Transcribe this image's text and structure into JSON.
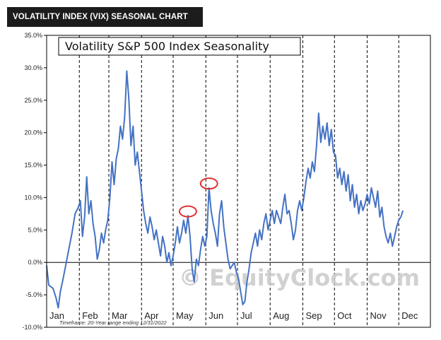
{
  "header": {
    "title": "VOLATILITY INDEX (VIX) SEASONAL CHART"
  },
  "chart_data": {
    "type": "line",
    "title": "Volatility S&P 500 Index Seasonality",
    "xlabel": "",
    "ylabel": "",
    "ylim": [
      -10,
      35
    ],
    "y_ticks": [
      "35.0%",
      "30.0%",
      "25.0%",
      "20.0%",
      "15.0%",
      "10.0%",
      "5.0%",
      "0.0%",
      "-5.0%",
      "-10.0%"
    ],
    "categories": [
      "Jan",
      "Feb",
      "Mar",
      "Apr",
      "May",
      "Jun",
      "Jul",
      "Aug",
      "Sep",
      "Oct",
      "Nov",
      "Dec"
    ],
    "grid": "vertical dashed month dividers",
    "line_color": "#4472c4",
    "highlight_color": "#e03030",
    "footnote": "Timeframe: 20-Year range ending 12/31/2022",
    "watermark": "© EquityClock.com",
    "series": [
      {
        "values_by_day": [
          [
            1,
            -0.5
          ],
          [
            3,
            -3.5
          ],
          [
            7,
            -4.0
          ],
          [
            10,
            -5.5
          ],
          [
            12,
            -7.0
          ],
          [
            14,
            -4.5
          ],
          [
            16,
            -3.0
          ],
          [
            19,
            -0.5
          ],
          [
            22,
            2.0
          ],
          [
            25,
            4.5
          ],
          [
            28,
            7.5
          ],
          [
            31,
            8.5
          ],
          [
            33,
            9.5
          ],
          [
            35,
            4.0
          ],
          [
            37,
            7.0
          ],
          [
            39,
            13.2
          ],
          [
            41,
            7.5
          ],
          [
            43,
            9.5
          ],
          [
            45,
            6.0
          ],
          [
            47,
            4.0
          ],
          [
            49,
            0.5
          ],
          [
            51,
            2.0
          ],
          [
            53,
            4.5
          ],
          [
            55,
            3.0
          ],
          [
            57,
            5.0
          ],
          [
            59,
            6.5
          ],
          [
            61,
            10.0
          ],
          [
            63,
            15.5
          ],
          [
            65,
            12.0
          ],
          [
            67,
            16.0
          ],
          [
            69,
            17.5
          ],
          [
            71,
            21.0
          ],
          [
            73,
            19.0
          ],
          [
            75,
            22.5
          ],
          [
            77,
            29.5
          ],
          [
            79,
            25.0
          ],
          [
            81,
            18.0
          ],
          [
            83,
            21.0
          ],
          [
            85,
            15.0
          ],
          [
            87,
            17.0
          ],
          [
            89,
            14.0
          ],
          [
            91,
            11.0
          ],
          [
            93,
            8.0
          ],
          [
            95,
            6.0
          ],
          [
            97,
            4.5
          ],
          [
            99,
            7.0
          ],
          [
            101,
            5.5
          ],
          [
            103,
            3.5
          ],
          [
            105,
            5.0
          ],
          [
            107,
            3.0
          ],
          [
            109,
            1.0
          ],
          [
            111,
            4.0
          ],
          [
            113,
            2.5
          ],
          [
            115,
            0.0
          ],
          [
            117,
            1.5
          ],
          [
            119,
            -0.5
          ],
          [
            121,
            1.0
          ],
          [
            123,
            3.0
          ],
          [
            125,
            5.5
          ],
          [
            127,
            3.0
          ],
          [
            129,
            4.5
          ],
          [
            131,
            6.5
          ],
          [
            133,
            4.5
          ],
          [
            135,
            7.2
          ],
          [
            137,
            4.0
          ],
          [
            139,
            -1.0
          ],
          [
            141,
            -3.0
          ],
          [
            143,
            0.5
          ],
          [
            145,
            -0.5
          ],
          [
            147,
            2.0
          ],
          [
            149,
            4.0
          ],
          [
            151,
            2.5
          ],
          [
            153,
            4.0
          ],
          [
            155,
            11.5
          ],
          [
            157,
            8.0
          ],
          [
            159,
            6.0
          ],
          [
            161,
            4.5
          ],
          [
            163,
            2.5
          ],
          [
            165,
            7.5
          ],
          [
            167,
            9.5
          ],
          [
            169,
            5.5
          ],
          [
            171,
            3.0
          ],
          [
            173,
            0.5
          ],
          [
            175,
            -1.0
          ],
          [
            177,
            -0.5
          ],
          [
            179,
            0.0
          ],
          [
            181,
            -1.5
          ],
          [
            183,
            -2.5
          ],
          [
            185,
            -4.5
          ],
          [
            187,
            -6.5
          ],
          [
            189,
            -6.0
          ],
          [
            191,
            -3.0
          ],
          [
            193,
            -1.0
          ],
          [
            195,
            1.5
          ],
          [
            197,
            3.0
          ],
          [
            199,
            4.5
          ],
          [
            201,
            2.5
          ],
          [
            203,
            5.0
          ],
          [
            205,
            3.5
          ],
          [
            207,
            6.0
          ],
          [
            209,
            7.5
          ],
          [
            211,
            5.0
          ],
          [
            213,
            6.5
          ],
          [
            215,
            8.0
          ],
          [
            217,
            6.0
          ],
          [
            219,
            8.0
          ],
          [
            221,
            7.0
          ],
          [
            223,
            6.0
          ],
          [
            225,
            8.5
          ],
          [
            227,
            10.5
          ],
          [
            229,
            7.5
          ],
          [
            231,
            8.0
          ],
          [
            233,
            6.0
          ],
          [
            235,
            3.5
          ],
          [
            237,
            5.0
          ],
          [
            239,
            8.0
          ],
          [
            241,
            9.5
          ],
          [
            243,
            8.0
          ],
          [
            245,
            10.0
          ],
          [
            247,
            12.5
          ],
          [
            249,
            14.5
          ],
          [
            251,
            13.0
          ],
          [
            253,
            15.5
          ],
          [
            255,
            14.0
          ],
          [
            257,
            18.0
          ],
          [
            259,
            23.0
          ],
          [
            261,
            18.5
          ],
          [
            263,
            21.0
          ],
          [
            265,
            19.0
          ],
          [
            267,
            21.5
          ],
          [
            269,
            18.0
          ],
          [
            271,
            20.5
          ],
          [
            273,
            17.0
          ],
          [
            275,
            16.5
          ],
          [
            277,
            13.0
          ],
          [
            279,
            14.5
          ],
          [
            281,
            12.0
          ],
          [
            283,
            14.0
          ],
          [
            285,
            11.0
          ],
          [
            287,
            13.5
          ],
          [
            289,
            9.5
          ],
          [
            291,
            12.0
          ],
          [
            293,
            8.5
          ],
          [
            295,
            10.5
          ],
          [
            297,
            7.5
          ],
          [
            299,
            9.5
          ],
          [
            301,
            8.0
          ],
          [
            303,
            9.0
          ],
          [
            305,
            10.5
          ],
          [
            307,
            9.0
          ],
          [
            309,
            11.5
          ],
          [
            311,
            10.0
          ],
          [
            313,
            8.5
          ],
          [
            315,
            11.0
          ],
          [
            317,
            7.0
          ],
          [
            319,
            8.5
          ],
          [
            321,
            5.5
          ],
          [
            323,
            4.0
          ],
          [
            325,
            3.0
          ],
          [
            327,
            4.5
          ],
          [
            329,
            2.5
          ],
          [
            331,
            4.0
          ],
          [
            333,
            5.5
          ],
          [
            335,
            6.5
          ],
          [
            337,
            7.0
          ],
          [
            339,
            8.0
          ]
        ]
      }
    ],
    "highlights": [
      {
        "day": 135,
        "value": 7.2
      },
      {
        "day": 155,
        "value": 11.5
      }
    ]
  }
}
